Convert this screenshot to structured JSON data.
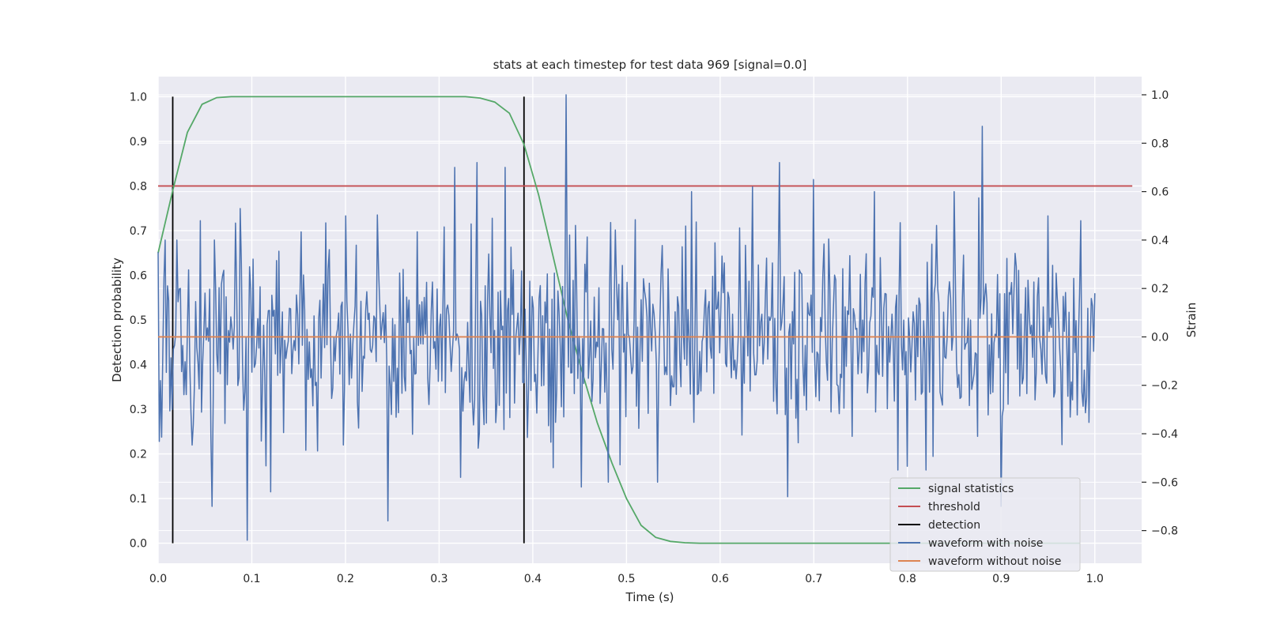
{
  "chart_data": {
    "type": "line",
    "title": "stats at each timestep for test data 969 [signal=0.0]",
    "xlabel": "Time (s)",
    "ylabel": "Detection probability",
    "y2label": "Strain",
    "xlim": [
      0.0,
      1.05
    ],
    "ylim": [
      -0.045,
      1.045
    ],
    "y2lim": [
      -0.935,
      1.075
    ],
    "x_ticks": [
      "0.0",
      "0.1",
      "0.2",
      "0.3",
      "0.4",
      "0.5",
      "0.6",
      "0.7",
      "0.8",
      "0.9",
      "1.0"
    ],
    "y_ticks": [
      "0.0",
      "0.1",
      "0.2",
      "0.3",
      "0.4",
      "0.5",
      "0.6",
      "0.7",
      "0.8",
      "0.9",
      "1.0"
    ],
    "y2_ticks": [
      "−0.8",
      "−0.6",
      "−0.4",
      "−0.2",
      "0.0",
      "0.2",
      "0.4",
      "0.6",
      "0.8",
      "1.0"
    ],
    "grid": true,
    "legend_position": "bottom-right",
    "series": [
      {
        "name": "signal statistics",
        "color": "#55a868",
        "axis": "left",
        "x": [
          0.0,
          0.0156,
          0.0312,
          0.0469,
          0.0625,
          0.0781,
          0.0938,
          0.1094,
          0.125,
          0.1406,
          0.1562,
          0.1719,
          0.1875,
          0.2031,
          0.2188,
          0.2344,
          0.25,
          0.2656,
          0.2812,
          0.2969,
          0.3125,
          0.3281,
          0.3438,
          0.3594,
          0.375,
          0.3906,
          0.4062,
          0.4219,
          0.4375,
          0.4531,
          0.4688,
          0.4844,
          0.5,
          0.5156,
          0.5312,
          0.5469,
          0.5625,
          0.5781,
          0.5938,
          0.6094,
          0.625,
          0.6406,
          0.6562,
          0.6719,
          0.6875,
          0.7031,
          0.7188,
          0.7344,
          0.75,
          0.7656,
          0.7812,
          0.7969,
          0.8125,
          0.8281,
          0.8438,
          0.8594,
          0.875,
          0.8906,
          0.9062,
          0.9219,
          0.9375,
          0.9531,
          0.9688,
          0.9844
        ],
        "values": [
          0.65,
          0.79,
          0.92,
          0.983,
          0.998,
          1.0,
          1.0,
          1.0,
          1.0,
          1.0,
          1.0,
          1.0,
          1.0,
          1.0,
          1.0,
          1.0,
          1.0,
          1.0,
          1.0,
          1.0,
          1.0,
          1.0,
          0.997,
          0.988,
          0.963,
          0.893,
          0.78,
          0.64,
          0.5,
          0.38,
          0.27,
          0.18,
          0.1,
          0.04,
          0.013,
          0.004,
          0.001,
          0.0,
          0.0,
          0.0,
          0.0,
          0.0,
          0.0,
          0.0,
          0.0,
          0.0,
          0.0,
          0.0,
          0.0,
          0.0,
          0.0,
          0.0,
          0.0,
          0.0,
          0.0,
          0.0,
          0.0,
          0.0,
          0.0,
          0.0,
          0.0,
          0.0,
          0.0,
          0.0
        ]
      },
      {
        "name": "threshold",
        "color": "#c44e52",
        "axis": "left",
        "x": [
          0.0,
          1.04
        ],
        "values": [
          0.8,
          0.8
        ]
      },
      {
        "name": "detection",
        "color": "#000000",
        "axis": "left",
        "segments": [
          {
            "x": 0.0156,
            "y": [
              0.0,
              1.0
            ]
          },
          {
            "x": 0.3906,
            "y": [
              0.0,
              1.0
            ]
          }
        ]
      },
      {
        "name": "waveform with noise",
        "color": "#4c72b0",
        "axis": "right",
        "x_range": [
          0.0,
          1.0
        ],
        "samples": 800,
        "peaks": [
          {
            "x": 0.0,
            "y": 0.35
          },
          {
            "x": 0.008,
            "y": 0.4
          },
          {
            "x": 0.015,
            "y": -0.3
          },
          {
            "x": 0.02,
            "y": 0.4
          },
          {
            "x": 0.045,
            "y": 0.48
          },
          {
            "x": 0.058,
            "y": -0.7
          },
          {
            "x": 0.083,
            "y": 0.47
          },
          {
            "x": 0.088,
            "y": 0.53
          },
          {
            "x": 0.095,
            "y": -0.84
          },
          {
            "x": 0.12,
            "y": -0.64
          },
          {
            "x": 0.2,
            "y": 0.5
          },
          {
            "x": 0.245,
            "y": -0.76
          },
          {
            "x": 0.317,
            "y": 0.7
          },
          {
            "x": 0.323,
            "y": -0.58
          },
          {
            "x": 0.34,
            "y": 0.72
          },
          {
            "x": 0.37,
            "y": 0.7
          },
          {
            "x": 0.395,
            "y": -0.2
          },
          {
            "x": 0.422,
            "y": -0.54
          },
          {
            "x": 0.435,
            "y": 1.0
          },
          {
            "x": 0.452,
            "y": -0.62
          },
          {
            "x": 0.48,
            "y": -0.6
          },
          {
            "x": 0.533,
            "y": -0.6
          },
          {
            "x": 0.57,
            "y": 0.6
          },
          {
            "x": 0.635,
            "y": 0.62
          },
          {
            "x": 0.663,
            "y": 0.72
          },
          {
            "x": 0.672,
            "y": -0.66
          },
          {
            "x": 0.7,
            "y": 0.65
          },
          {
            "x": 0.765,
            "y": 0.6
          },
          {
            "x": 0.79,
            "y": -0.55
          },
          {
            "x": 0.82,
            "y": -0.55
          },
          {
            "x": 0.85,
            "y": 0.6
          },
          {
            "x": 0.88,
            "y": 0.87
          },
          {
            "x": 0.9,
            "y": -0.7
          },
          {
            "x": 0.95,
            "y": 0.5
          },
          {
            "x": 0.985,
            "y": 0.48
          },
          {
            "x": 0.995,
            "y": -0.05
          }
        ]
      },
      {
        "name": "waveform without noise",
        "color": "#dd8452",
        "axis": "right",
        "x": [
          0.0,
          1.0
        ],
        "values": [
          0.0,
          0.0
        ]
      }
    ]
  }
}
